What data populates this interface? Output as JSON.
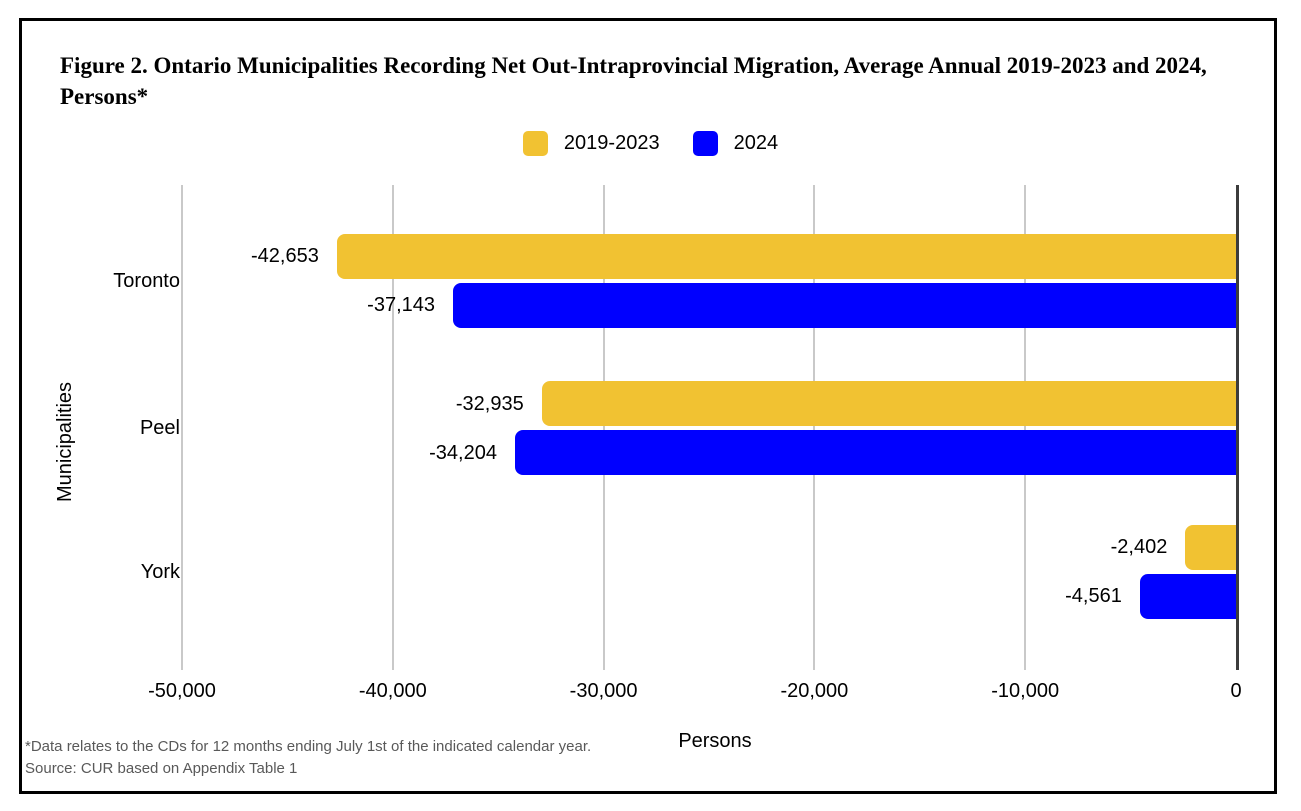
{
  "figure": {
    "title": "Figure 2. Ontario Municipalities Recording Net Out-Intraprovincial Migration, Average Annual 2019-2023 and 2024, Persons*",
    "footnote_line1": "*Data relates to the CDs for 12 months ending July 1st of the indicated calendar year.",
    "footnote_line2": "Source: CUR based on Appendix Table 1"
  },
  "chart_data": {
    "type": "bar",
    "orientation": "horizontal",
    "title": "Figure 2. Ontario Municipalities Recording Net Out-Intraprovincial Migration, Average Annual 2019-2023 and 2024, Persons*",
    "categories": [
      "Toronto",
      "Peel",
      "York"
    ],
    "series": [
      {
        "name": "2019-2023",
        "color": "#F1C232",
        "values": [
          -42653,
          -32935,
          -2402
        ],
        "labels": [
          "-42,653",
          "-32,935",
          "-2,402"
        ]
      },
      {
        "name": "2024",
        "color": "#0000FF",
        "values": [
          -37143,
          -34204,
          -4561
        ],
        "labels": [
          "-37,143",
          "-34,204",
          "-4,561"
        ]
      }
    ],
    "xlabel": "Persons",
    "ylabel": "Municipalities",
    "xlim": [
      -50000,
      0
    ],
    "x_ticks": [
      -50000,
      -40000,
      -30000,
      -20000,
      -10000,
      0
    ],
    "x_tick_labels": [
      "-50,000",
      "-40,000",
      "-30,000",
      "-20,000",
      "-10,000",
      "0"
    ],
    "legend_position": "top",
    "grid": true,
    "colors": {
      "grid": "#c9c9c9",
      "zero_axis": "#3c3c3c",
      "border": "#000000",
      "footnote": "#595959",
      "text": "#000000"
    }
  }
}
